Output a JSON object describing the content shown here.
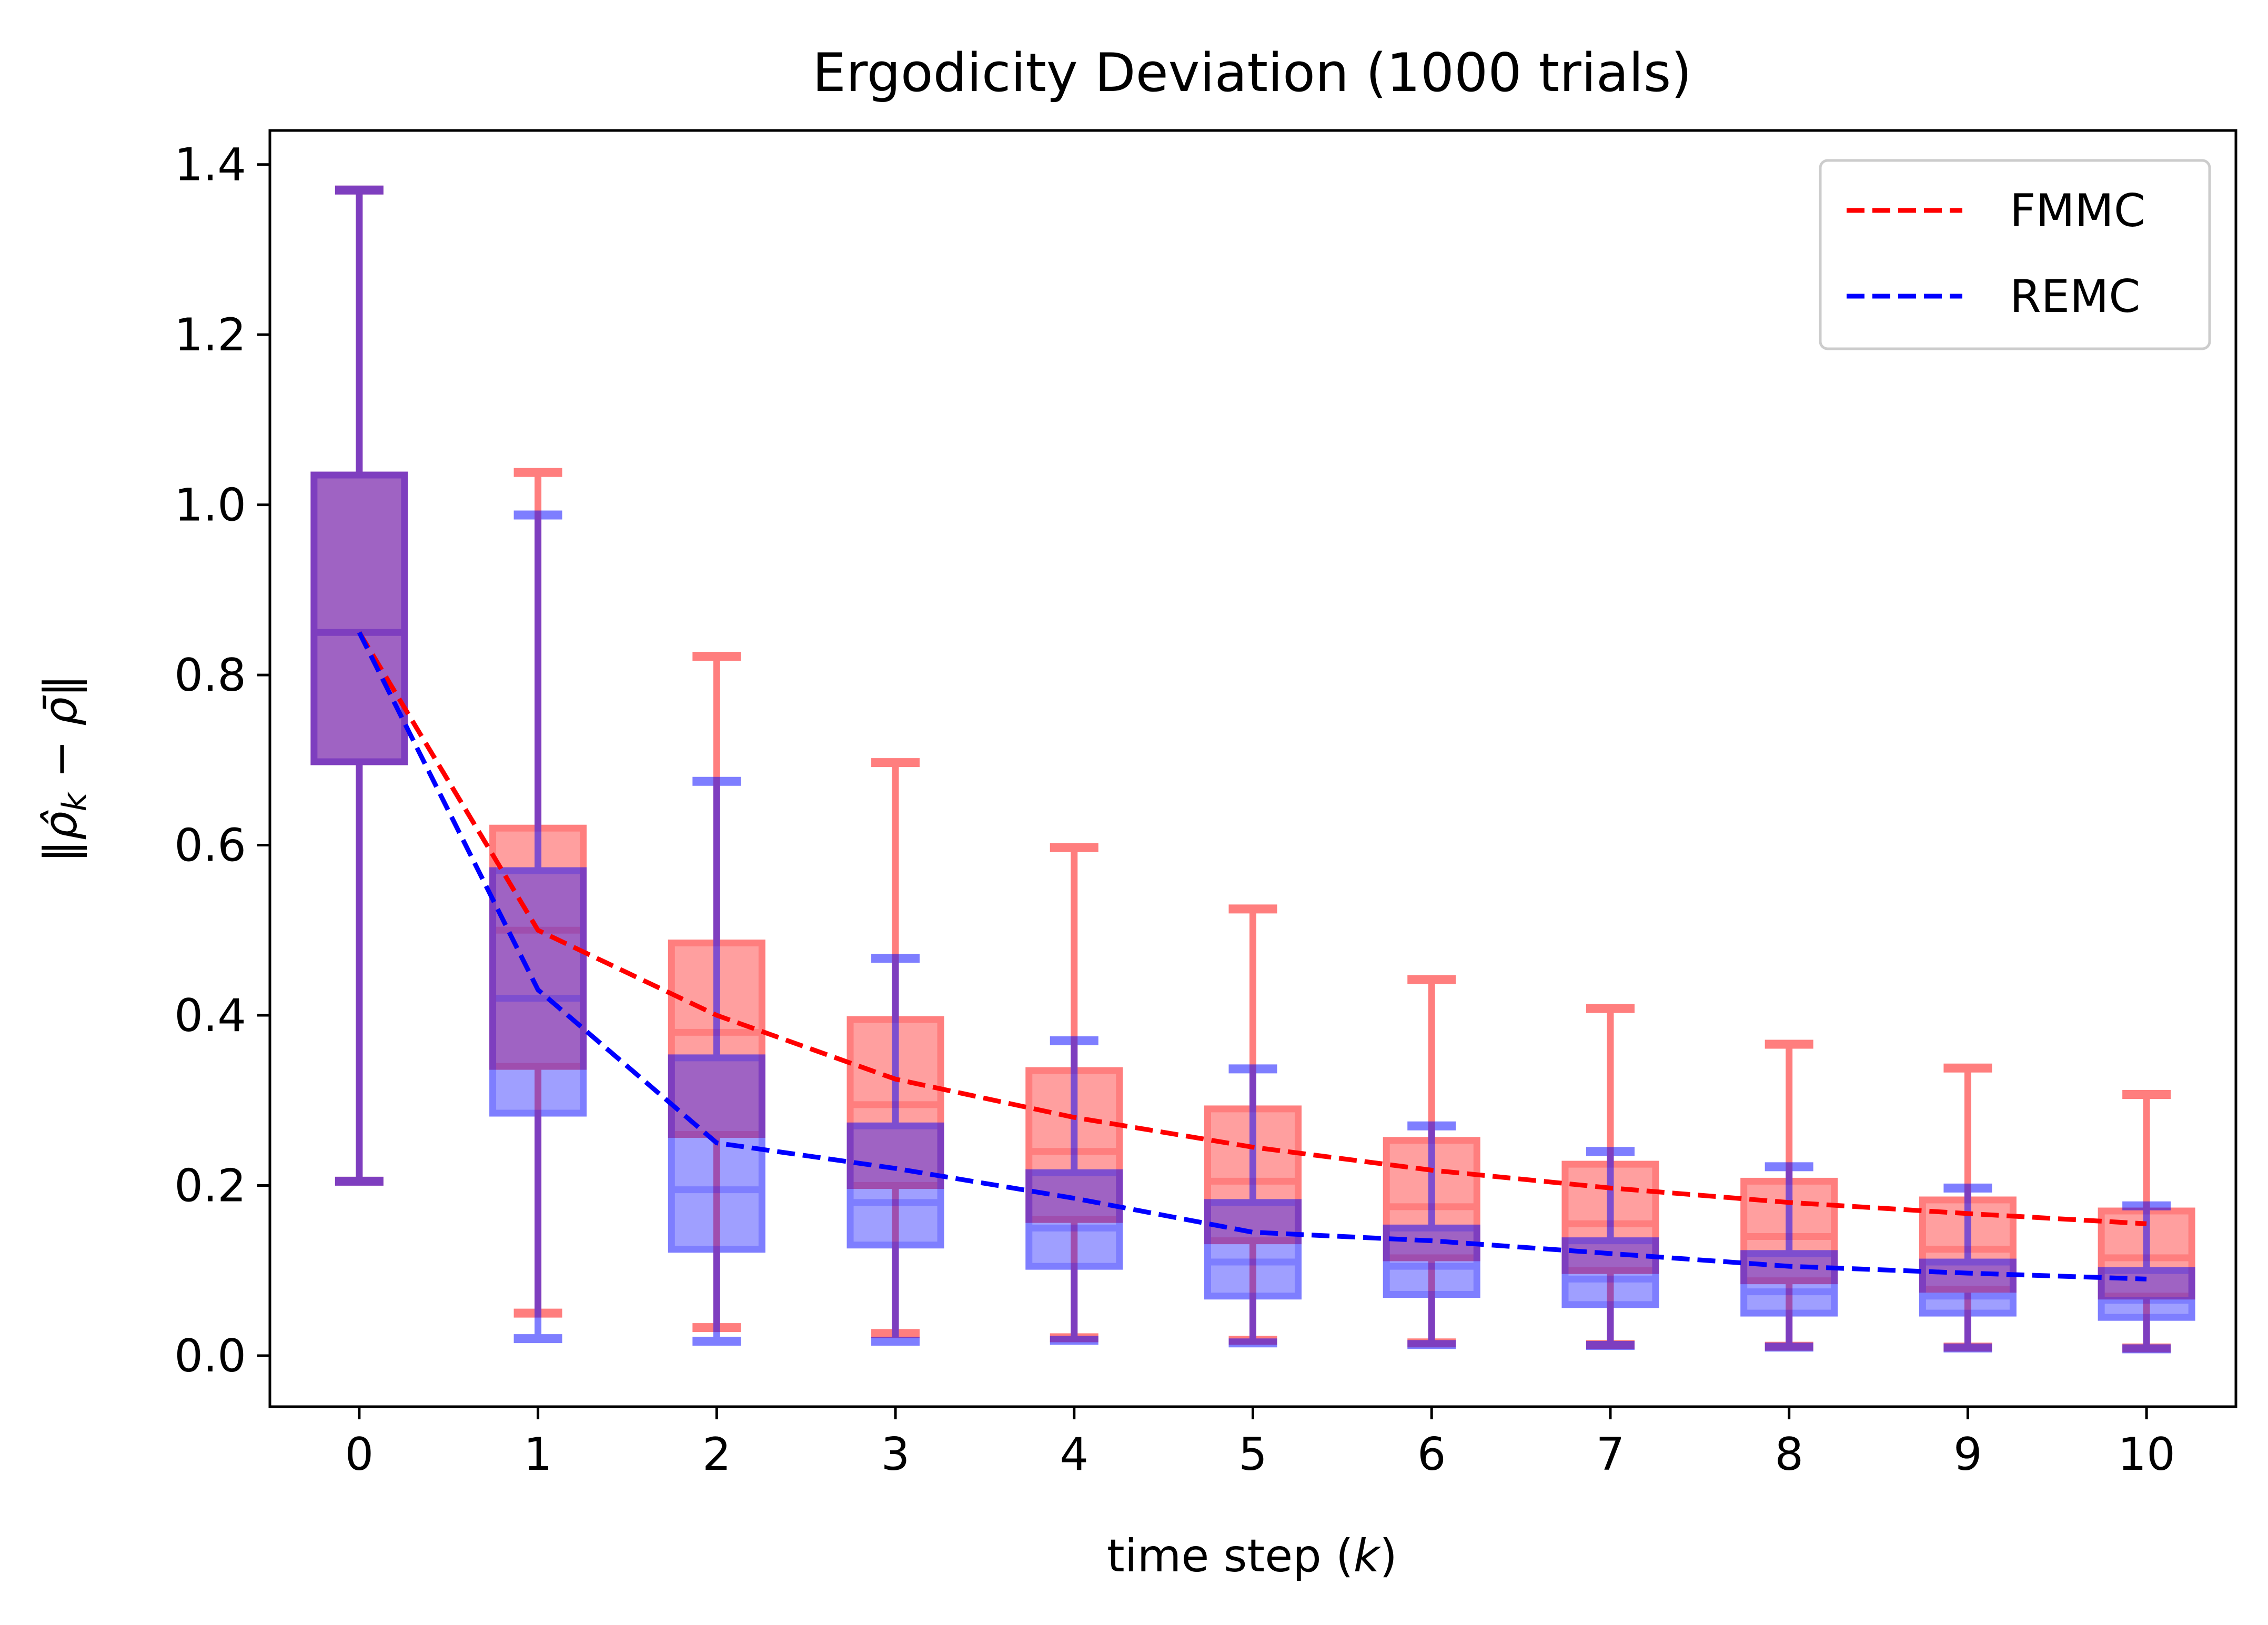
{
  "chart_data": {
    "type": "box",
    "title": "Ergodicity Deviation (1000 trials)",
    "xlabel": "time step (k)",
    "xlabel_parts": [
      "time step (",
      "k",
      ")"
    ],
    "ylabel": "‖ρ̂ₖ − ρ̄‖",
    "ylabel_parts": [
      "‖",
      "ρ̂",
      "k",
      " − ",
      "ρ̄",
      "‖"
    ],
    "x": [
      0,
      1,
      2,
      3,
      4,
      5,
      6,
      7,
      8,
      9,
      10
    ],
    "x_tick_labels": [
      "0",
      "1",
      "2",
      "3",
      "4",
      "5",
      "6",
      "7",
      "8",
      "9",
      "10"
    ],
    "y_ticks": [
      0.0,
      0.2,
      0.4,
      0.6,
      0.8,
      1.0,
      1.2,
      1.4
    ],
    "y_tick_labels": [
      "0.0",
      "0.2",
      "0.4",
      "0.6",
      "0.8",
      "1.0",
      "1.2",
      "1.4"
    ],
    "xlim": [
      -0.5,
      10.5
    ],
    "ylim": [
      -0.06,
      1.44
    ],
    "grid": false,
    "legend_position": "upper right",
    "series": [
      {
        "name": "FMMC",
        "color": "#ff0000",
        "line_style": "dashed",
        "boxes": [
          {
            "whisker_low": 0.205,
            "q1": 0.698,
            "median": 0.85,
            "q3": 1.035,
            "whisker_high": 1.37
          },
          {
            "whisker_low": 0.05,
            "q1": 0.34,
            "median": 0.5,
            "q3": 0.62,
            "whisker_high": 1.038
          },
          {
            "whisker_low": 0.033,
            "q1": 0.26,
            "median": 0.38,
            "q3": 0.485,
            "whisker_high": 0.822
          },
          {
            "whisker_low": 0.026,
            "q1": 0.2,
            "median": 0.295,
            "q3": 0.395,
            "whisker_high": 0.697
          },
          {
            "whisker_low": 0.021,
            "q1": 0.16,
            "median": 0.24,
            "q3": 0.335,
            "whisker_high": 0.597
          },
          {
            "whisker_low": 0.018,
            "q1": 0.135,
            "median": 0.205,
            "q3": 0.29,
            "whisker_high": 0.525
          },
          {
            "whisker_low": 0.015,
            "q1": 0.115,
            "median": 0.175,
            "q3": 0.253,
            "whisker_high": 0.442
          },
          {
            "whisker_low": 0.013,
            "q1": 0.1,
            "median": 0.155,
            "q3": 0.225,
            "whisker_high": 0.408
          },
          {
            "whisker_low": 0.011,
            "q1": 0.088,
            "median": 0.14,
            "q3": 0.205,
            "whisker_high": 0.366
          },
          {
            "whisker_low": 0.01,
            "q1": 0.078,
            "median": 0.125,
            "q3": 0.183,
            "whisker_high": 0.338
          },
          {
            "whisker_low": 0.009,
            "q1": 0.07,
            "median": 0.115,
            "q3": 0.17,
            "whisker_high": 0.307
          }
        ],
        "line_values": [
          0.85,
          0.5,
          0.4,
          0.325,
          0.28,
          0.245,
          0.218,
          0.197,
          0.18,
          0.167,
          0.155
        ]
      },
      {
        "name": "REMC",
        "color": "#0000ff",
        "line_style": "dashed",
        "boxes": [
          {
            "whisker_low": 0.205,
            "q1": 0.698,
            "median": 0.85,
            "q3": 1.035,
            "whisker_high": 1.37
          },
          {
            "whisker_low": 0.02,
            "q1": 0.285,
            "median": 0.42,
            "q3": 0.57,
            "whisker_high": 0.988
          },
          {
            "whisker_low": 0.017,
            "q1": 0.125,
            "median": 0.195,
            "q3": 0.35,
            "whisker_high": 0.675
          },
          {
            "whisker_low": 0.017,
            "q1": 0.13,
            "median": 0.18,
            "q3": 0.27,
            "whisker_high": 0.467
          },
          {
            "whisker_low": 0.018,
            "q1": 0.105,
            "median": 0.15,
            "q3": 0.215,
            "whisker_high": 0.37
          },
          {
            "whisker_low": 0.015,
            "q1": 0.07,
            "median": 0.11,
            "q3": 0.18,
            "whisker_high": 0.337
          },
          {
            "whisker_low": 0.013,
            "q1": 0.072,
            "median": 0.105,
            "q3": 0.15,
            "whisker_high": 0.27
          },
          {
            "whisker_low": 0.012,
            "q1": 0.06,
            "median": 0.09,
            "q3": 0.135,
            "whisker_high": 0.24
          },
          {
            "whisker_low": 0.01,
            "q1": 0.05,
            "median": 0.075,
            "q3": 0.12,
            "whisker_high": 0.222
          },
          {
            "whisker_low": 0.009,
            "q1": 0.05,
            "median": 0.07,
            "q3": 0.11,
            "whisker_high": 0.197
          },
          {
            "whisker_low": 0.008,
            "q1": 0.045,
            "median": 0.065,
            "q3": 0.1,
            "whisker_high": 0.176
          }
        ],
        "line_values": [
          0.85,
          0.43,
          0.25,
          0.22,
          0.185,
          0.145,
          0.135,
          0.12,
          0.105,
          0.097,
          0.09
        ]
      }
    ]
  }
}
